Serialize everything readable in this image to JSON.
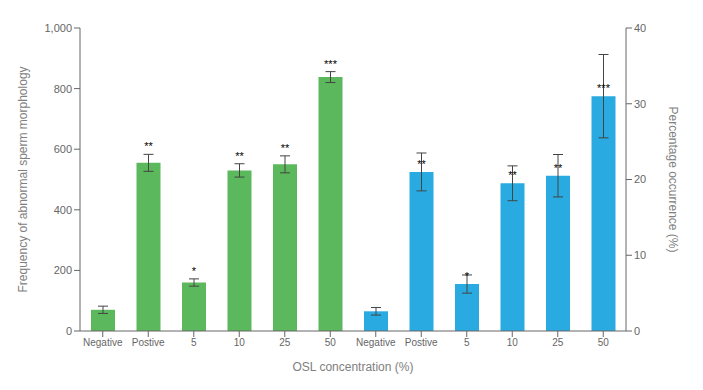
{
  "chart_data": {
    "type": "bar",
    "xlabel": "OSL concentration (%)",
    "ylabel": "Frequency of abnormal sperm morphology",
    "y2label": "Percentage occurrence (%)",
    "categories": [
      "Negative",
      "Postive",
      "5",
      "10",
      "25",
      "50",
      "Negative",
      "Postive",
      "5",
      "10",
      "25",
      "50"
    ],
    "ylim": [
      0,
      1000
    ],
    "yticks": [
      0,
      200,
      400,
      600,
      800,
      {
        "value": 1000,
        "label": "1,000"
      }
    ],
    "y2lim": [
      0,
      40
    ],
    "y2ticks": [
      0,
      10,
      20,
      30,
      40
    ],
    "grid": false,
    "series": [
      {
        "color": "#5cb85c",
        "axis": "y",
        "values": [
          70,
          555,
          160,
          530,
          550,
          838,
          null,
          null,
          null,
          null,
          null,
          null
        ],
        "errors": [
          12,
          28,
          12,
          22,
          28,
          18,
          null,
          null,
          null,
          null,
          null,
          null
        ],
        "annotations": [
          null,
          "**",
          "*",
          "**",
          "**",
          "***",
          null,
          null,
          null,
          null,
          null,
          null
        ]
      },
      {
        "color": "#29abe2",
        "axis": "y2",
        "values": [
          null,
          null,
          null,
          null,
          null,
          null,
          2.6,
          21.0,
          6.2,
          19.5,
          20.5,
          31.0
        ],
        "errors": [
          null,
          null,
          null,
          null,
          null,
          null,
          0.5,
          2.5,
          1.2,
          2.3,
          2.8,
          5.5
        ],
        "annotations": [
          null,
          null,
          null,
          null,
          null,
          null,
          null,
          "**",
          "*",
          "**",
          "**",
          "***"
        ]
      }
    ]
  }
}
